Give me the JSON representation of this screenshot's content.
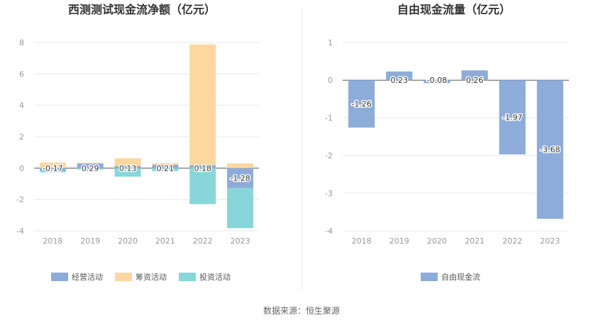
{
  "source_text": "数据来源：恒生聚源",
  "chart_data": [
    {
      "type": "bar",
      "title": "西测测试现金流净额（亿元）",
      "categories": [
        "2018",
        "2019",
        "2020",
        "2021",
        "2022",
        "2023"
      ],
      "ylim": [
        -4,
        8
      ],
      "yticks": [
        -4,
        -2,
        0,
        2,
        4,
        6,
        8
      ],
      "grid": true,
      "stacked": true,
      "legend_position": "bottom",
      "series": [
        {
          "name": "经营活动",
          "color": "#8eacd9",
          "values": [
            -0.17,
            0.29,
            0.13,
            0.21,
            0.18,
            -1.28
          ]
        },
        {
          "name": "筹资活动",
          "color": "#fcd8a0",
          "values": [
            0.35,
            0.05,
            0.5,
            0.1,
            7.7,
            0.3
          ]
        },
        {
          "name": "投资活动",
          "color": "#88d6d9",
          "values": [
            -0.1,
            -0.1,
            -0.55,
            -0.2,
            -2.3,
            -2.55
          ]
        }
      ],
      "data_labels": [
        -0.17,
        0.29,
        0.13,
        0.21,
        0.18,
        -1.28
      ]
    },
    {
      "type": "bar",
      "title": "自由现金流量（亿元）",
      "categories": [
        "2018",
        "2019",
        "2020",
        "2021",
        "2022",
        "2023"
      ],
      "ylim": [
        -4,
        1
      ],
      "yticks": [
        -4,
        -3,
        -2,
        -1,
        0,
        1
      ],
      "grid": true,
      "legend_position": "bottom",
      "series": [
        {
          "name": "自由现金流",
          "color": "#8eacd9",
          "values": [
            -1.26,
            0.23,
            -0.08,
            0.26,
            -1.97,
            -3.68
          ]
        }
      ],
      "data_labels": [
        -1.26,
        0.23,
        -0.08,
        0.26,
        -1.97,
        -3.68
      ]
    }
  ]
}
